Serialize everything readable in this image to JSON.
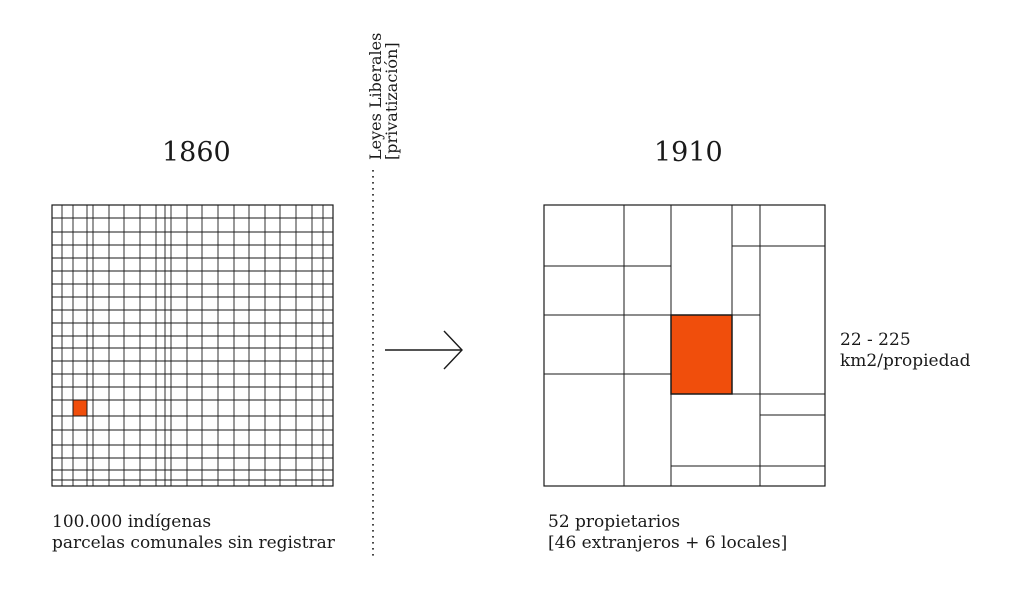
{
  "before": {
    "year": "1860",
    "caption_line1": "100.000 indígenas",
    "caption_line2": "parcelas comunales sin registrar"
  },
  "divider": {
    "label_line1": "Leyes Liberales",
    "label_line2": "[privatización]"
  },
  "after": {
    "year": "1910",
    "caption_line1": "52 propietarios",
    "caption_line2": "[46 extranjeros + 6 locales]",
    "area_line1": "22 - 225",
    "area_line2": "km2/propiedad"
  },
  "colors": {
    "highlight": "#f04e0c",
    "line": "#1a1a1a"
  }
}
